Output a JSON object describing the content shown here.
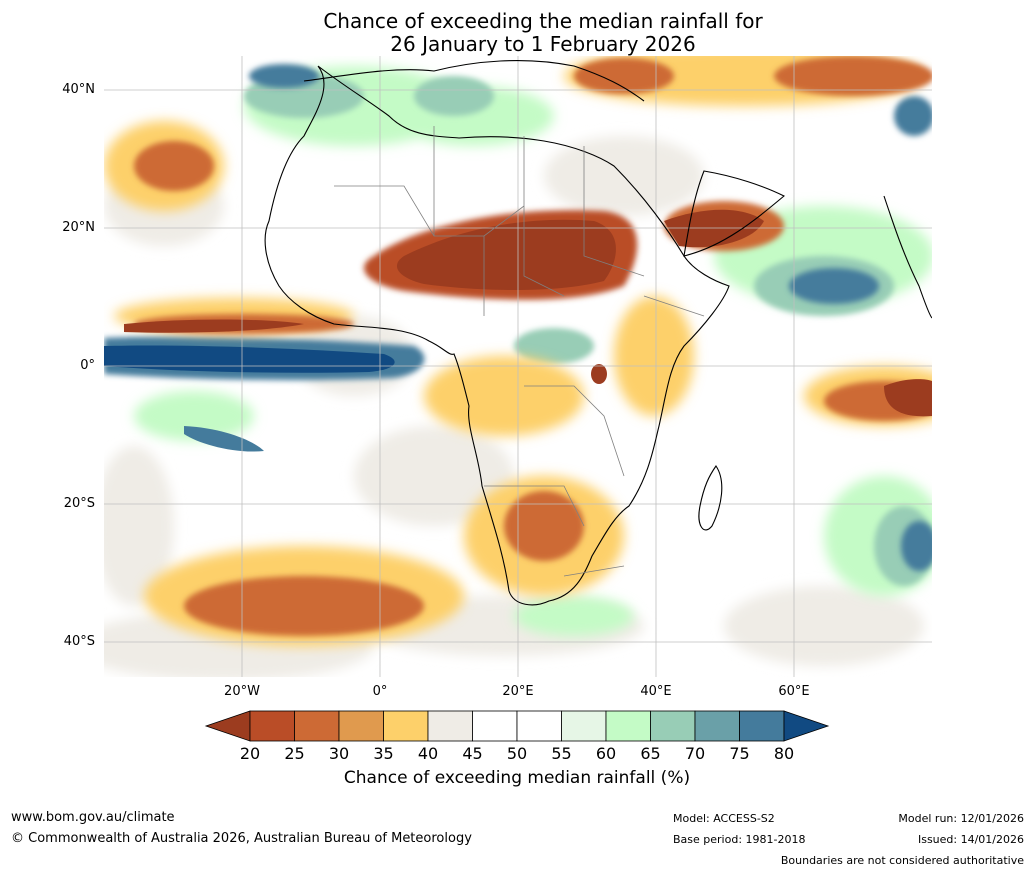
{
  "title": {
    "line1": "Chance of exceeding the median rainfall for",
    "line2": "26 January to 1 February 2026"
  },
  "map": {
    "region": "Africa",
    "latitude_labels": [
      "40°N",
      "20°N",
      "0°",
      "20°S",
      "40°S"
    ],
    "longitude_labels": [
      "20°W",
      "0°",
      "20°E",
      "40°E",
      "60°E"
    ]
  },
  "colorbar": {
    "ticks": [
      "20",
      "25",
      "30",
      "35",
      "40",
      "45",
      "50",
      "55",
      "60",
      "65",
      "70",
      "75",
      "80"
    ],
    "colors": [
      "#9c3c1f",
      "#ba4d27",
      "#cd6a35",
      "#e09a4e",
      "#fdd06a",
      "#efece6",
      "#ffffff",
      "#ffffff",
      "#e6f6e6",
      "#c4fbc6",
      "#98cdb6",
      "#6aa0a8",
      "#447b9c",
      "#114a82"
    ],
    "label": "Chance of exceeding median rainfall (%)"
  },
  "footer": {
    "website": "www.bom.gov.au/climate",
    "copyright": "© Commonwealth of Australia 2026, Australian Bureau of Meteorology",
    "model": "Model: ACCESS-S2",
    "base_period": "Base period: 1981-2018",
    "model_run": "Model run: 12/01/2026",
    "issued": "Issued: 14/01/2026",
    "disclaimer": "Boundaries are not considered authoritative"
  }
}
